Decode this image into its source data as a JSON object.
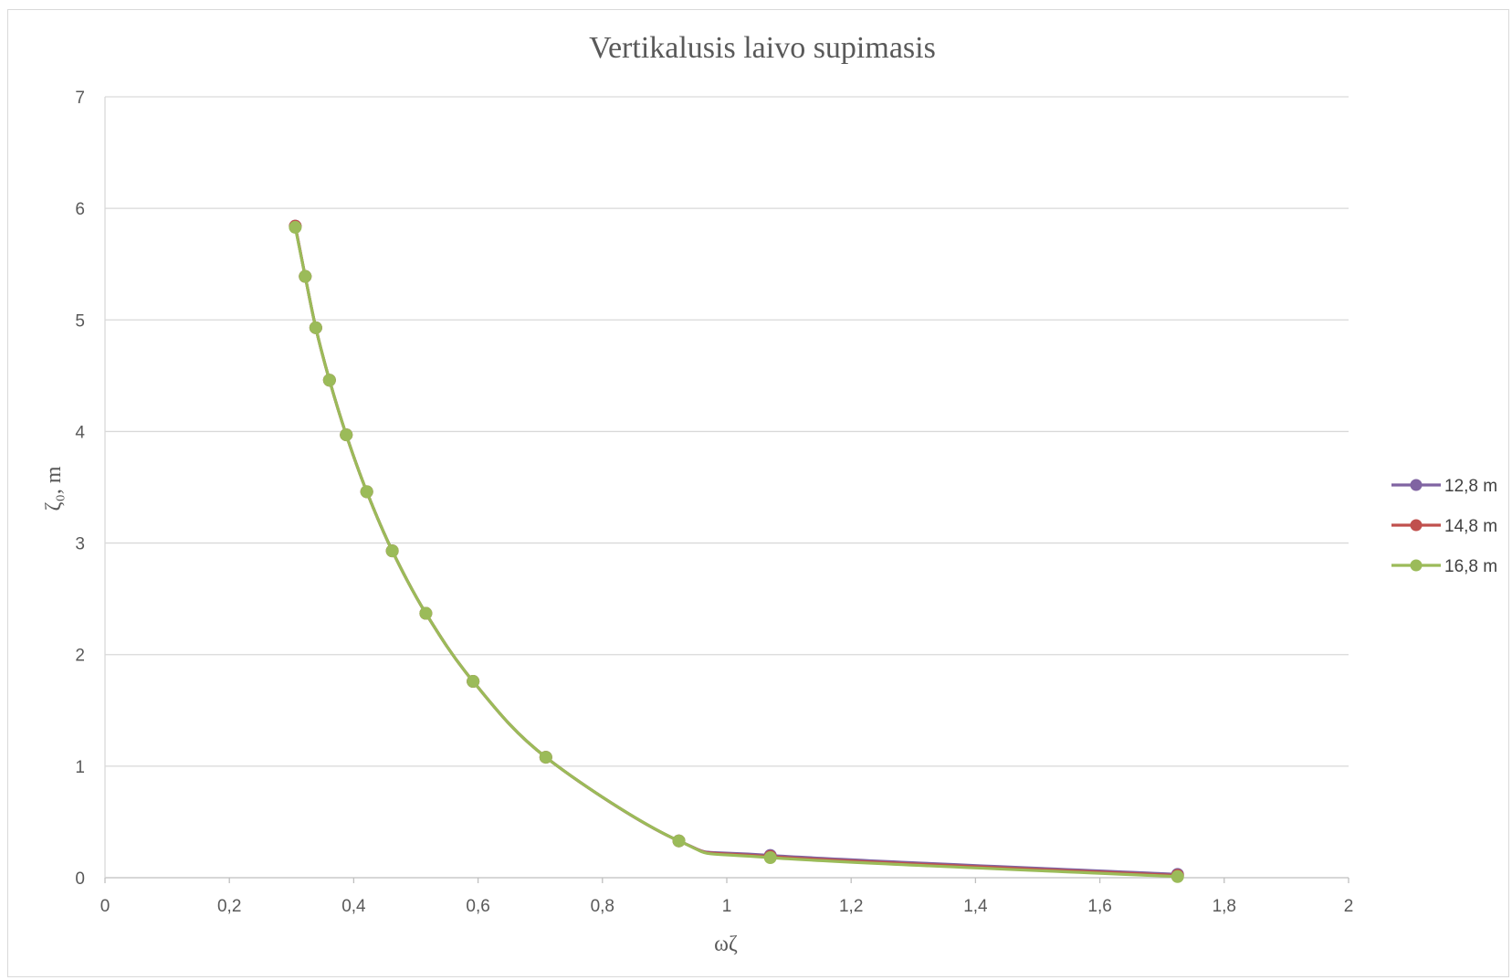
{
  "chart_data": {
    "type": "line",
    "title": "Vertikalusis laivo supimasis",
    "xlabel": "ωζ",
    "ylabel": "ζ₀, m",
    "xlim": [
      0,
      2
    ],
    "ylim": [
      0,
      7
    ],
    "x_ticks": [
      "0",
      "0,2",
      "0,4",
      "0,6",
      "0,8",
      "1",
      "1,2",
      "1,4",
      "1,6",
      "1,8",
      "2"
    ],
    "y_ticks": [
      "0",
      "1",
      "2",
      "3",
      "4",
      "5",
      "6",
      "7"
    ],
    "grid": "horizontal",
    "legend_position": "right",
    "series": [
      {
        "name": "12,8 m",
        "color": "#8064a2",
        "points": [
          [
            0.306,
            5.84
          ],
          [
            0.322,
            5.39
          ],
          [
            0.339,
            4.93
          ],
          [
            0.361,
            4.46
          ],
          [
            0.388,
            3.97
          ],
          [
            0.421,
            3.46
          ],
          [
            0.462,
            2.93
          ],
          [
            0.516,
            2.37
          ],
          [
            0.592,
            1.76
          ],
          [
            0.709,
            1.08
          ],
          [
            0.923,
            0.33
          ],
          [
            1.07,
            0.2
          ],
          [
            1.725,
            0.03
          ]
        ]
      },
      {
        "name": "14,8 m",
        "color": "#c0504d",
        "points": [
          [
            0.306,
            5.84
          ],
          [
            0.322,
            5.39
          ],
          [
            0.339,
            4.93
          ],
          [
            0.361,
            4.46
          ],
          [
            0.388,
            3.97
          ],
          [
            0.421,
            3.46
          ],
          [
            0.462,
            2.93
          ],
          [
            0.516,
            2.37
          ],
          [
            0.592,
            1.76
          ],
          [
            0.709,
            1.08
          ],
          [
            0.923,
            0.33
          ],
          [
            1.07,
            0.19
          ],
          [
            1.725,
            0.02
          ]
        ]
      },
      {
        "name": "16,8 m",
        "color": "#9bbb59",
        "points": [
          [
            0.306,
            5.83
          ],
          [
            0.322,
            5.39
          ],
          [
            0.339,
            4.93
          ],
          [
            0.361,
            4.46
          ],
          [
            0.388,
            3.97
          ],
          [
            0.421,
            3.46
          ],
          [
            0.462,
            2.93
          ],
          [
            0.516,
            2.37
          ],
          [
            0.592,
            1.76
          ],
          [
            0.709,
            1.08
          ],
          [
            0.923,
            0.33
          ],
          [
            1.07,
            0.18
          ],
          [
            1.725,
            0.01
          ]
        ]
      }
    ]
  }
}
